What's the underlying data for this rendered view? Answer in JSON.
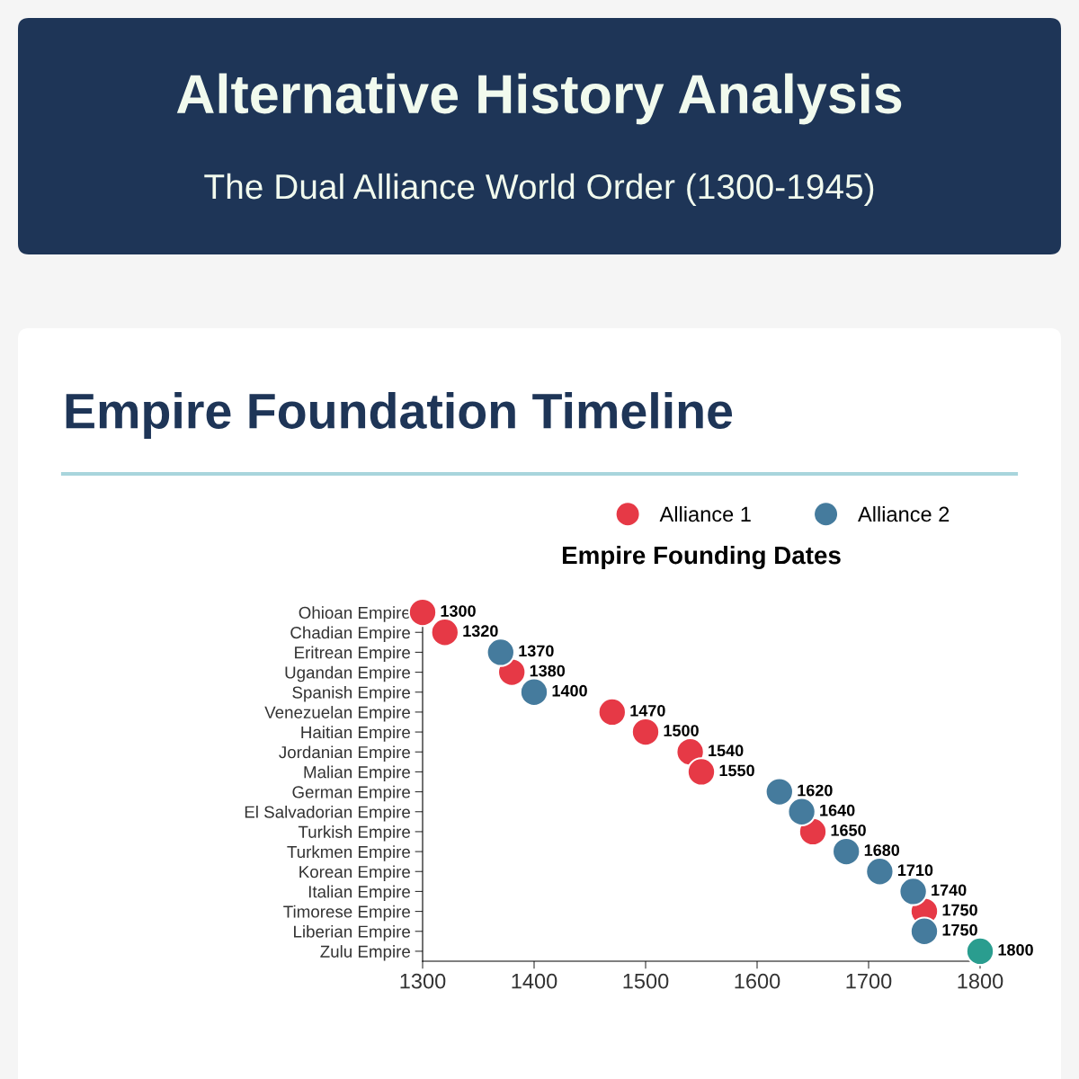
{
  "chart_data": {
    "type": "scatter",
    "title": "Alternative History Analysis",
    "subtitle": "The Dual Alliance World Order (1300-1945)",
    "annotations": [
      "Empire Foundation Timeline",
      "Empire Founding Dates"
    ],
    "orientation": "horizontal",
    "categories": [
      "Ohioan Empire",
      "Chadian Empire",
      "Eritrean Empire",
      "Ugandan Empire",
      "Spanish Empire",
      "Venezuelan Empire",
      "Haitian Empire",
      "Jordanian Empire",
      "Malian Empire",
      "German Empire",
      "El Salvadorian Empire",
      "Turkish Empire",
      "Turkmen Empire",
      "Korean Empire",
      "Italian Empire",
      "Timorese Empire",
      "Liberian Empire",
      "Zulu Empire"
    ],
    "series": [
      {
        "name": "Alliance 1",
        "color": "#e63946",
        "values": [
          1300,
          1320,
          null,
          1380,
          null,
          1470,
          1500,
          1540,
          1550,
          null,
          null,
          1650,
          null,
          null,
          null,
          1750,
          null,
          null
        ]
      },
      {
        "name": "Alliance 2",
        "color": "#457b9d",
        "values": [
          null,
          null,
          1370,
          null,
          1400,
          null,
          null,
          null,
          null,
          1620,
          1640,
          null,
          1680,
          1710,
          1740,
          null,
          1750,
          null
        ]
      },
      {
        "color": "#2a9d8f",
        "values": [
          null,
          null,
          null,
          null,
          null,
          null,
          null,
          null,
          null,
          null,
          null,
          null,
          null,
          null,
          null,
          null,
          null,
          1800
        ]
      }
    ],
    "xlim": [
      1300,
      1800
    ],
    "xticks": [
      1300,
      1400,
      1500,
      1600,
      1700,
      1800
    ],
    "data_labels": true,
    "legend": "top right",
    "marker": "circle",
    "grid": false
  }
}
